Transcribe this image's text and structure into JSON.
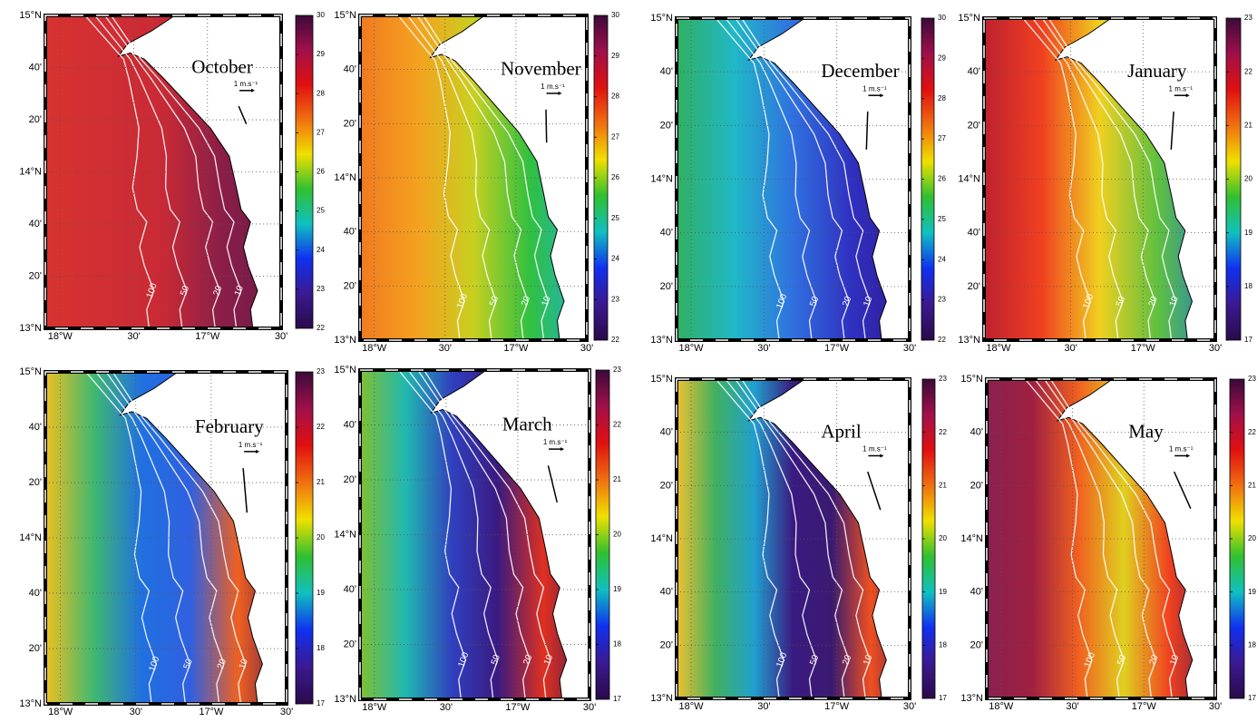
{
  "figure": {
    "xlim": [
      -18.1,
      -16.5
    ],
    "ylim": [
      13,
      15
    ],
    "lon_ticks": [
      {
        "value": -18,
        "label": "18°W"
      },
      {
        "value": -17.5,
        "label": "30'"
      },
      {
        "value": -17,
        "label": "17°W"
      },
      {
        "value": -16.5,
        "label": "30'"
      }
    ],
    "lat_ticks": [
      {
        "value": 15,
        "label": "15°N"
      },
      {
        "value": 14.667,
        "label": "40'"
      },
      {
        "value": 14.333,
        "label": "20'"
      },
      {
        "value": 14,
        "label": "14°N"
      },
      {
        "value": 13.667,
        "label": "40'"
      },
      {
        "value": 13.333,
        "label": "20'"
      },
      {
        "value": 13,
        "label": "13°N"
      }
    ],
    "grid": true,
    "bathymetry_contours": [
      100,
      50,
      20,
      10
    ],
    "wind_scale_label": "1 m.s⁻¹",
    "colormap": [
      "#2a0a4a",
      "#3a1a90",
      "#1030f0",
      "#10c0c0",
      "#30c030",
      "#f0e000",
      "#f07010",
      "#e01010",
      "#a0104a",
      "#3b0a3a"
    ],
    "panels": [
      {
        "title": "October",
        "clim": [
          22,
          30
        ],
        "cticks": [
          22,
          23,
          24,
          25,
          26,
          27,
          28,
          29,
          30
        ],
        "wind": {
          "u": 0.6,
          "v": -1.4
        },
        "field": [
          "#d8332f",
          "#d02e33",
          "#c82a35",
          "#8a1e48",
          "#6b1a4a"
        ]
      },
      {
        "title": "November",
        "clim": [
          22,
          30
        ],
        "cticks": [
          22,
          23,
          24,
          25,
          26,
          27,
          28,
          29,
          30
        ],
        "wind": {
          "u": 0.05,
          "v": -2.6
        },
        "field": [
          "#f07a20",
          "#f5a020",
          "#c8d020",
          "#30c040",
          "#20b0d0"
        ]
      },
      {
        "title": "December",
        "clim": [
          22,
          30
        ],
        "cticks": [
          22,
          23,
          24,
          25,
          26,
          27,
          28,
          29,
          30
        ],
        "wind": {
          "u": -0.1,
          "v": -3
        },
        "field": [
          "#30b060",
          "#20b8c8",
          "#3070e0",
          "#3030c0",
          "#301890"
        ]
      },
      {
        "title": "January",
        "clim": [
          17,
          23
        ],
        "cticks": [
          17,
          18,
          19,
          20,
          21,
          22,
          23
        ],
        "wind": {
          "u": -0.2,
          "v": -3
        },
        "field": [
          "#c02030",
          "#f04020",
          "#f0d020",
          "#60c040",
          "#2080c0"
        ]
      },
      {
        "title": "February",
        "clim": [
          17,
          23
        ],
        "cticks": [
          17,
          18,
          19,
          20,
          21,
          22,
          23
        ],
        "wind": {
          "u": 0.3,
          "v": -3.5
        },
        "field": [
          "#f0c020",
          "#40b870",
          "#2070e0",
          "#3060e0",
          "#f06020",
          "#5a1a50"
        ]
      },
      {
        "title": "March",
        "clim": [
          17,
          23
        ],
        "cticks": [
          17,
          18,
          19,
          20,
          21,
          22,
          23
        ],
        "wind": {
          "u": 0.7,
          "v": -2.9
        },
        "field": [
          "#80c030",
          "#20b8b0",
          "#3040c0",
          "#3a1a80",
          "#e03020",
          "#4a1a50"
        ]
      },
      {
        "title": "April",
        "clim": [
          17,
          23
        ],
        "cticks": [
          17,
          18,
          19,
          20,
          21,
          22,
          23
        ],
        "wind": {
          "u": 1.0,
          "v": -3
        },
        "field": [
          "#f0c030",
          "#40b060",
          "#20a0d0",
          "#3a1a80",
          "#3a1a70",
          "#f05020",
          "#5a1a50"
        ]
      },
      {
        "title": "May",
        "clim": [
          17,
          23
        ],
        "cticks": [
          17,
          18,
          19,
          20,
          21,
          22,
          23
        ],
        "wind": {
          "u": 1.3,
          "v": -2.9
        },
        "field": [
          "#8a2050",
          "#a02040",
          "#f06020",
          "#e0d020",
          "#f04020",
          "#6a1a48"
        ]
      }
    ]
  }
}
